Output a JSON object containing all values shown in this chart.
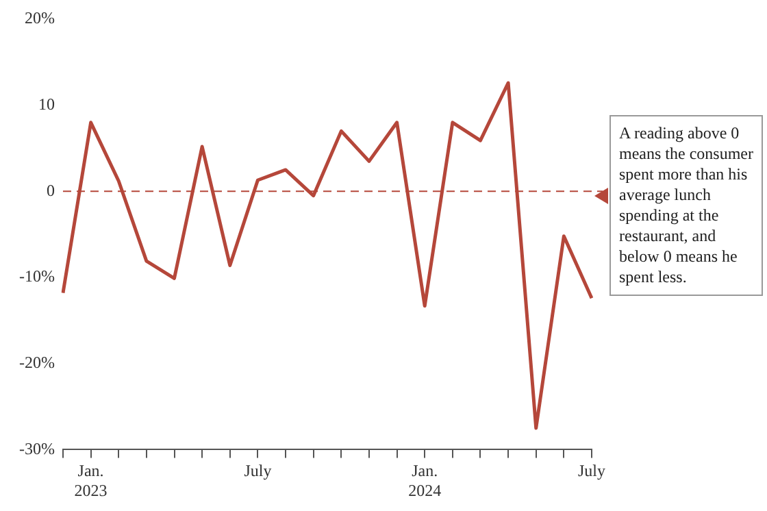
{
  "chart_data": {
    "type": "line",
    "categories": [
      null,
      "Jan.\n2023",
      null,
      null,
      null,
      null,
      null,
      "July",
      null,
      null,
      null,
      null,
      null,
      "Jan.\n2024",
      null,
      null,
      null,
      null,
      null,
      "July"
    ],
    "series": [
      {
        "color": "#b5473a",
        "values": [
          -11.8,
          8,
          1.2,
          -8.1,
          -10.1,
          5.2,
          -8.6,
          1.3,
          2.5,
          -0.5,
          7,
          3.5,
          8,
          -13.3,
          8,
          5.9,
          12.6,
          -27.5,
          -5.2,
          -12.4
        ]
      }
    ],
    "ylim": [
      -30,
      20
    ],
    "yticks": [
      {
        "value": -30,
        "label": "-30%"
      },
      {
        "value": -20,
        "label": "-20%"
      },
      {
        "value": -10,
        "label": "-10%"
      },
      0,
      10,
      {
        "value": 20,
        "label": "20%"
      }
    ],
    "grid": false,
    "legend": false,
    "marker": "none",
    "line_style": "solid",
    "ref_lines": [
      {
        "axis": "y",
        "value": 0,
        "color": "#b5473a",
        "line_style": "dashed"
      }
    ],
    "annotations": [
      "A reading above 0 means the consumer spent more than his average lunch spending at the restaurant, and below 0 means he spent less."
    ]
  }
}
